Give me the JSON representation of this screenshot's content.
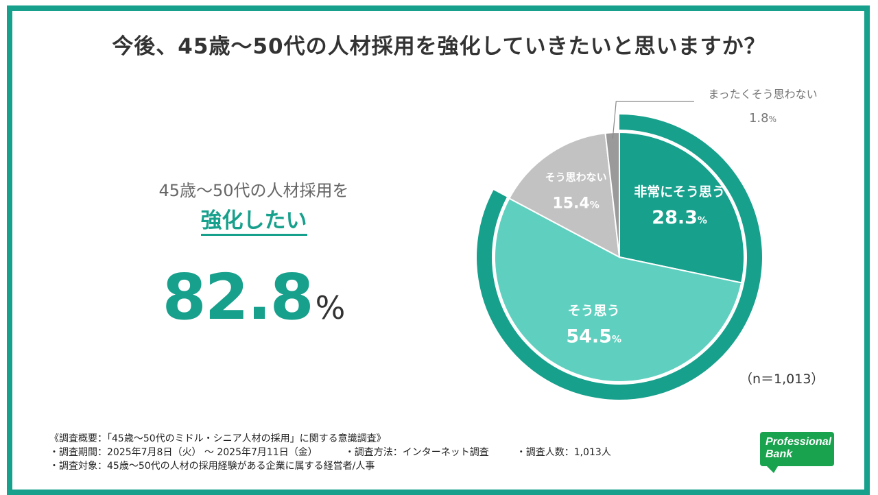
{
  "title": "今後、45歳～50代の人材採用を強化していきたいと思いますか？",
  "headline": {
    "sub": "45歳～50代の人材採用を",
    "strong": "強化したい",
    "value": "82.8",
    "unit": "%"
  },
  "chart_data": {
    "type": "pie",
    "title": "今後、45歳～50代の人材採用を強化していきたいと思いますか？",
    "slices": [
      {
        "label": "非常にそう思う",
        "value": 28.3,
        "display": "28.3",
        "color": "#17a08c"
      },
      {
        "label": "そう思う",
        "value": 54.5,
        "display": "54.5",
        "color": "#5fd0bf"
      },
      {
        "label": "そう思わない",
        "value": 15.4,
        "display": "15.4",
        "color": "#c2c2c2"
      },
      {
        "label": "まったくそう思わない",
        "value": 1.8,
        "display": "1.8",
        "color": "#9a9a9a"
      }
    ],
    "outer_ring": {
      "label": "強化したい",
      "value": 82.8,
      "color": "#17a08c"
    },
    "unit": "%",
    "sample": "（n＝1,013）"
  },
  "notes": {
    "line1": "《調査概要：「45歳～50代のミドル・シニア人材の採用」に関する意識調査》",
    "line2a": "・調査期間：2025年7月8日（火） ～ 2025年7月11日（金）",
    "line2b": "・調査方法：インターネット調査",
    "line2c": "・調査人数：1,013人",
    "line3": "・調査対象：45歳～50代の人材の採用経験がある企業に属する経営者/人事"
  },
  "logo": {
    "line1": "Professional",
    "line2": "Bank"
  }
}
